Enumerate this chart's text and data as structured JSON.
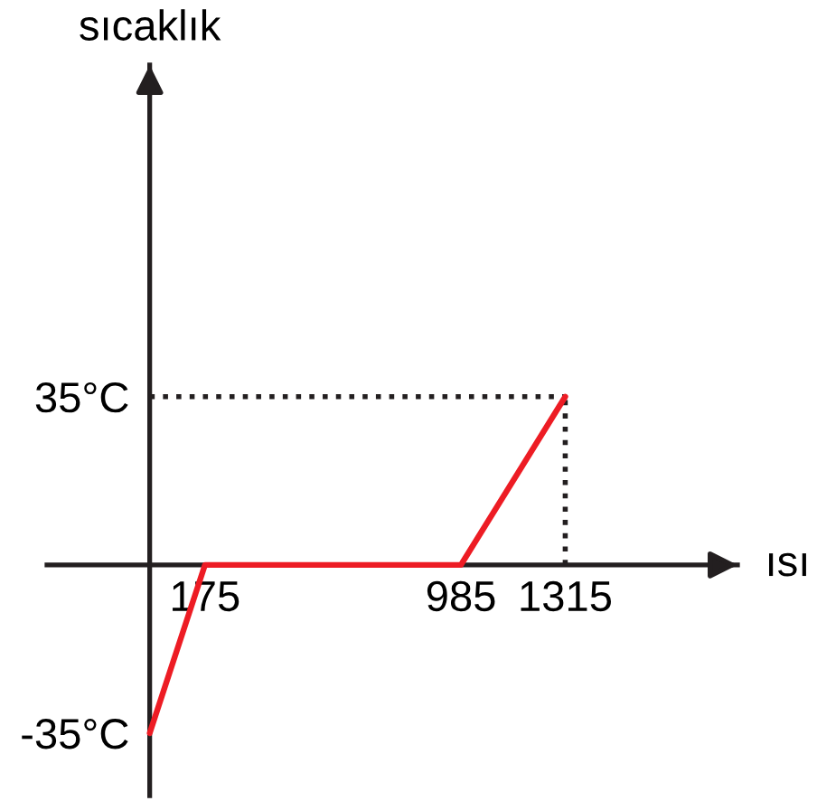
{
  "chart_data": {
    "type": "line",
    "xlabel": "ısı",
    "ylabel": "sıcaklık",
    "x": [
      0,
      175,
      985,
      1315
    ],
    "series": [
      {
        "color": "#ed1c24",
        "values": [
          -35,
          0,
          0,
          35
        ]
      }
    ],
    "xlim": [
      -325,
      1860
    ],
    "ylim": [
      -48,
      104
    ],
    "xticks": [
      175,
      985,
      1315
    ],
    "yticks": [
      {
        "value": -35,
        "label": "-35°C"
      },
      {
        "value": 35,
        "label": "35°C"
      }
    ],
    "ref_lines": [
      {
        "axis": "y",
        "value": 35,
        "color": "#231f20",
        "line_style": "dotted"
      },
      {
        "axis": "x",
        "value": 1315,
        "color": "#231f20",
        "line_style": "dotted"
      }
    ],
    "grid": false,
    "marker": "none",
    "line_style": "solid"
  }
}
